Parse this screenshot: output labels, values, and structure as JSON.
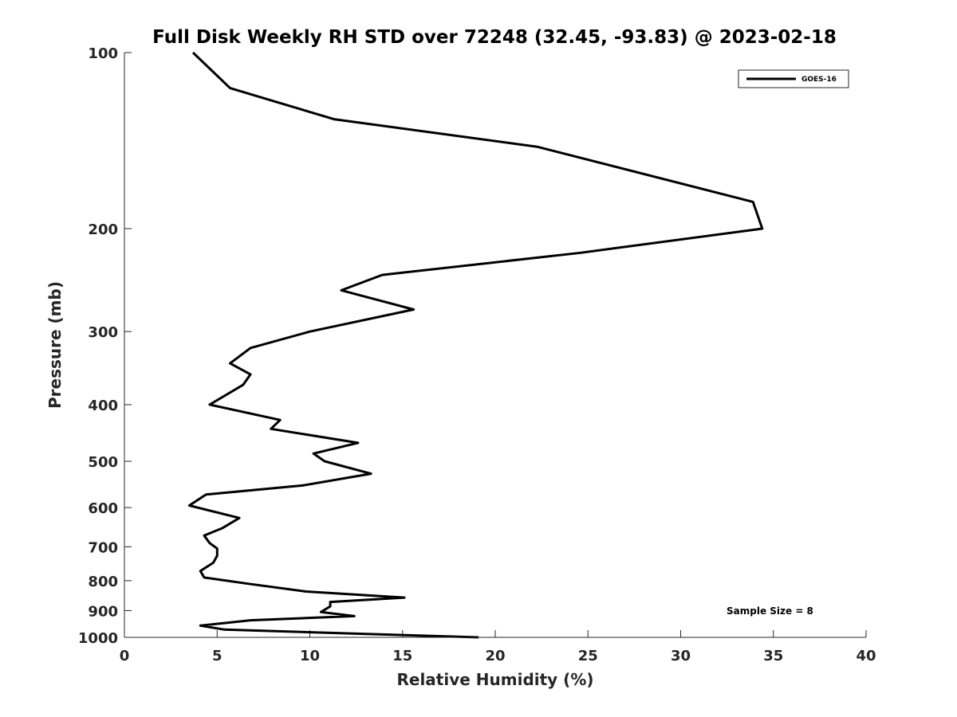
{
  "chart_data": {
    "type": "line",
    "title": "Full Disk Weekly RH STD over 72248 (32.45, -93.83) @ 2023-02-18",
    "xlabel": "Relative Humidity (%)",
    "ylabel": "Pressure (mb)",
    "xlim": [
      0,
      40
    ],
    "ylim": [
      100,
      1000
    ],
    "y_scale": "log",
    "y_reversed": true,
    "grid": false,
    "legend_position": "top-right",
    "x_ticks": [
      0,
      5,
      10,
      15,
      20,
      25,
      30,
      35,
      40
    ],
    "y_ticks": [
      100,
      200,
      300,
      400,
      500,
      600,
      700,
      800,
      900,
      1000
    ],
    "series": [
      {
        "name": "GOES-16",
        "color": "#000000",
        "points": [
          [
            3.7,
            100
          ],
          [
            5.7,
            115
          ],
          [
            11.3,
            130
          ],
          [
            22.3,
            145
          ],
          [
            33.9,
            180
          ],
          [
            34.4,
            200
          ],
          [
            24.6,
            220
          ],
          [
            13.9,
            240
          ],
          [
            11.7,
            255
          ],
          [
            15.6,
            275
          ],
          [
            10.0,
            300
          ],
          [
            6.8,
            320
          ],
          [
            5.7,
            340
          ],
          [
            6.8,
            355
          ],
          [
            6.4,
            370
          ],
          [
            4.6,
            400
          ],
          [
            8.4,
            425
          ],
          [
            7.9,
            440
          ],
          [
            12.6,
            465
          ],
          [
            10.2,
            485
          ],
          [
            10.8,
            500
          ],
          [
            13.3,
            525
          ],
          [
            9.6,
            550
          ],
          [
            4.4,
            570
          ],
          [
            3.5,
            595
          ],
          [
            6.2,
            625
          ],
          [
            5.3,
            650
          ],
          [
            4.3,
            670
          ],
          [
            4.6,
            690
          ],
          [
            5.0,
            705
          ],
          [
            5.0,
            725
          ],
          [
            4.8,
            745
          ],
          [
            4.1,
            770
          ],
          [
            4.3,
            790
          ],
          [
            6.7,
            810
          ],
          [
            9.8,
            835
          ],
          [
            15.1,
            855
          ],
          [
            11.1,
            870
          ],
          [
            11.1,
            885
          ],
          [
            10.6,
            905
          ],
          [
            12.4,
            920
          ],
          [
            6.8,
            935
          ],
          [
            4.1,
            955
          ],
          [
            5.4,
            970
          ],
          [
            19.1,
            1000
          ]
        ]
      }
    ],
    "annotations": [
      "Sample Size = 8"
    ]
  }
}
